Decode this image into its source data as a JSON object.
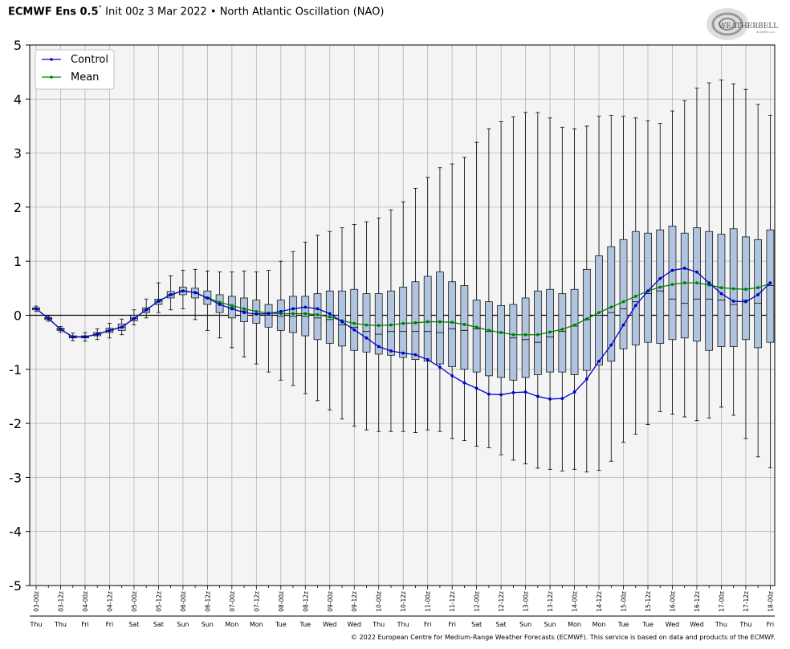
{
  "header": {
    "model": "ECMWF Ens 0.5",
    "degree": "°",
    "init": "Init 00z 3 Mar 2022",
    "separator": "•",
    "index": "North Atlantic Oscillation (NAO)"
  },
  "logo": {
    "text": "WEATHERBELL",
    "subtext": "Analytics LLC"
  },
  "footer": {
    "text": "© 2022 European Centre for Medium-Range Weather Forecasts (ECMWF). This service is based on data and products of the ECMWF."
  },
  "colors": {
    "control": "#0000cc",
    "mean": "#008000",
    "box": "#b0c4de",
    "grid": "#b4b4b4",
    "plot_bg": "#f4f4f4"
  },
  "chart_data": {
    "type": "box",
    "title": "North Atlantic Oscillation (NAO)",
    "ylim": [
      -5,
      5
    ],
    "yticks": [
      5,
      4,
      3,
      2,
      1,
      0,
      -1,
      -2,
      -3,
      -4,
      -5
    ],
    "legend": {
      "position": "top-left",
      "entries": [
        "Control",
        "Mean"
      ]
    },
    "x": [
      "03-00z",
      "03-06z",
      "03-12z",
      "03-18z",
      "04-00z",
      "04-06z",
      "04-12z",
      "04-18z",
      "05-00z",
      "05-06z",
      "05-12z",
      "05-18z",
      "06-00z",
      "06-06z",
      "06-12z",
      "06-18z",
      "07-00z",
      "07-06z",
      "07-12z",
      "07-18z",
      "08-00z",
      "08-06z",
      "08-12z",
      "08-18z",
      "09-00z",
      "09-06z",
      "09-12z",
      "09-18z",
      "10-00z",
      "10-06z",
      "10-12z",
      "10-18z",
      "11-00z",
      "11-06z",
      "11-12z",
      "11-18z",
      "12-00z",
      "12-06z",
      "12-12z",
      "12-18z",
      "13-00z",
      "13-06z",
      "13-12z",
      "13-18z",
      "14-00z",
      "14-06z",
      "14-12z",
      "14-18z",
      "15-00z",
      "15-06z",
      "15-12z",
      "15-18z",
      "16-00z",
      "16-06z",
      "16-12z",
      "16-18z",
      "17-00z",
      "17-06z",
      "17-12z",
      "17-18z",
      "18-00z"
    ],
    "tick_labels": [
      "03-00z",
      "03-12z",
      "04-00z",
      "04-12z",
      "05-00z",
      "05-12z",
      "06-00z",
      "06-12z",
      "07-00z",
      "07-12z",
      "08-00z",
      "08-12z",
      "09-00z",
      "09-12z",
      "10-00z",
      "10-12z",
      "11-00z",
      "11-12z",
      "12-00z",
      "12-12z",
      "13-00z",
      "13-12z",
      "14-00z",
      "14-12z",
      "15-00z",
      "15-12z",
      "16-00z",
      "16-12z",
      "17-00z",
      "17-12z",
      "18-00z"
    ],
    "day_labels": [
      "Thu",
      "Thu",
      "Fri",
      "Fri",
      "Sat",
      "Sat",
      "Sun",
      "Sun",
      "Mon",
      "Mon",
      "Tue",
      "Tue",
      "Wed",
      "Wed",
      "Thu",
      "Thu",
      "Fri",
      "Fri",
      "Sat",
      "Sat",
      "Sun",
      "Sun",
      "Mon",
      "Mon",
      "Tue",
      "Tue",
      "Wed",
      "Wed",
      "Thu",
      "Thu",
      "Fri"
    ],
    "control": [
      0.12,
      -0.06,
      -0.26,
      -0.4,
      -0.4,
      -0.35,
      -0.28,
      -0.22,
      -0.06,
      0.1,
      0.26,
      0.38,
      0.45,
      0.42,
      0.32,
      0.2,
      0.12,
      0.05,
      0.02,
      0.03,
      0.07,
      0.12,
      0.15,
      0.12,
      0.03,
      -0.12,
      -0.27,
      -0.42,
      -0.58,
      -0.66,
      -0.7,
      -0.73,
      -0.82,
      -0.96,
      -1.12,
      -1.25,
      -1.35,
      -1.46,
      -1.47,
      -1.43,
      -1.42,
      -1.5,
      -1.55,
      -1.54,
      -1.42,
      -1.18,
      -0.85,
      -0.55,
      -0.18,
      0.18,
      0.45,
      0.68,
      0.83,
      0.87,
      0.8,
      0.6,
      0.4,
      0.26,
      0.25,
      0.38,
      0.6
    ],
    "mean": [
      0.12,
      -0.06,
      -0.26,
      -0.4,
      -0.4,
      -0.35,
      -0.28,
      -0.22,
      -0.06,
      0.1,
      0.26,
      0.38,
      0.45,
      0.42,
      0.32,
      0.24,
      0.18,
      0.12,
      0.07,
      0.04,
      0.03,
      0.03,
      0.03,
      0.01,
      -0.03,
      -0.1,
      -0.15,
      -0.18,
      -0.19,
      -0.18,
      -0.15,
      -0.14,
      -0.12,
      -0.12,
      -0.13,
      -0.17,
      -0.22,
      -0.28,
      -0.32,
      -0.36,
      -0.36,
      -0.36,
      -0.31,
      -0.26,
      -0.18,
      -0.07,
      0.05,
      0.15,
      0.25,
      0.35,
      0.45,
      0.52,
      0.57,
      0.6,
      0.6,
      0.56,
      0.51,
      0.49,
      0.48,
      0.51,
      0.59
    ],
    "box_low": [
      0.1,
      -0.08,
      -0.28,
      -0.42,
      -0.42,
      -0.38,
      -0.32,
      -0.28,
      -0.1,
      0.05,
      0.2,
      0.32,
      0.38,
      0.32,
      0.2,
      0.05,
      -0.05,
      -0.12,
      -0.15,
      -0.22,
      -0.28,
      -0.32,
      -0.38,
      -0.45,
      -0.52,
      -0.57,
      -0.65,
      -0.68,
      -0.72,
      -0.74,
      -0.78,
      -0.82,
      -0.85,
      -0.9,
      -0.95,
      -1.0,
      -1.05,
      -1.12,
      -1.15,
      -1.2,
      -1.15,
      -1.1,
      -1.05,
      -1.05,
      -1.1,
      -1.02,
      -0.92,
      -0.85,
      -0.62,
      -0.55,
      -0.5,
      -0.52,
      -0.45,
      -0.42,
      -0.48,
      -0.65,
      -0.58,
      -0.58,
      -0.45,
      -0.6,
      -0.5
    ],
    "box_high": [
      0.14,
      -0.04,
      -0.24,
      -0.38,
      -0.38,
      -0.32,
      -0.24,
      -0.16,
      0.0,
      0.14,
      0.3,
      0.44,
      0.52,
      0.5,
      0.45,
      0.38,
      0.35,
      0.32,
      0.28,
      0.2,
      0.28,
      0.35,
      0.35,
      0.4,
      0.45,
      0.45,
      0.48,
      0.4,
      0.4,
      0.45,
      0.52,
      0.62,
      0.72,
      0.8,
      0.62,
      0.55,
      0.28,
      0.25,
      0.18,
      0.2,
      0.32,
      0.45,
      0.48,
      0.4,
      0.48,
      0.85,
      1.1,
      1.27,
      1.4,
      1.55,
      1.52,
      1.58,
      1.65,
      1.52,
      1.62,
      1.55,
      1.5,
      1.6,
      1.45,
      1.4,
      1.58
    ],
    "median": [
      0.12,
      -0.06,
      -0.26,
      -0.4,
      -0.4,
      -0.35,
      -0.28,
      -0.22,
      -0.06,
      0.1,
      0.26,
      0.38,
      0.45,
      0.42,
      0.32,
      0.22,
      0.14,
      0.08,
      0.03,
      0.0,
      -0.02,
      -0.02,
      -0.02,
      -0.05,
      -0.08,
      -0.18,
      -0.22,
      -0.3,
      -0.35,
      -0.3,
      -0.3,
      -0.3,
      -0.3,
      -0.32,
      -0.25,
      -0.28,
      -0.25,
      -0.3,
      -0.32,
      -0.42,
      -0.45,
      -0.5,
      -0.4,
      -0.3,
      -0.2,
      -0.08,
      0.0,
      0.05,
      0.12,
      0.25,
      0.4,
      0.45,
      0.3,
      0.22,
      0.3,
      0.3,
      0.28,
      0.2,
      0.28,
      0.22,
      0.55
    ],
    "whisker_low": [
      0.07,
      -0.11,
      -0.31,
      -0.47,
      -0.48,
      -0.45,
      -0.42,
      -0.36,
      -0.18,
      -0.05,
      0.05,
      0.1,
      0.12,
      -0.08,
      -0.28,
      -0.42,
      -0.6,
      -0.77,
      -0.9,
      -1.05,
      -1.2,
      -1.3,
      -1.45,
      -1.58,
      -1.75,
      -1.92,
      -2.05,
      -2.12,
      -2.15,
      -2.15,
      -2.15,
      -2.17,
      -2.12,
      -2.15,
      -2.28,
      -2.32,
      -2.42,
      -2.45,
      -2.58,
      -2.68,
      -2.75,
      -2.83,
      -2.85,
      -2.88,
      -2.85,
      -2.9,
      -2.87,
      -2.7,
      -2.35,
      -2.2,
      -2.02,
      -1.78,
      -1.83,
      -1.88,
      -1.95,
      -1.9,
      -1.7,
      -1.85,
      -2.28,
      -2.62,
      -2.82
    ],
    "whisker_high": [
      0.17,
      -0.01,
      -0.21,
      -0.33,
      -0.32,
      -0.25,
      -0.15,
      -0.07,
      0.1,
      0.3,
      0.6,
      0.73,
      0.83,
      0.85,
      0.82,
      0.8,
      0.8,
      0.82,
      0.8,
      0.83,
      1.0,
      1.18,
      1.35,
      1.48,
      1.55,
      1.62,
      1.68,
      1.73,
      1.8,
      1.95,
      2.1,
      2.35,
      2.55,
      2.73,
      2.8,
      2.92,
      3.2,
      3.45,
      3.58,
      3.67,
      3.75,
      3.75,
      3.65,
      3.48,
      3.45,
      3.5,
      3.68,
      3.7,
      3.68,
      3.65,
      3.6,
      3.55,
      3.78,
      3.97,
      4.2,
      4.3,
      4.35,
      4.28,
      4.18,
      3.9,
      3.7
    ]
  }
}
